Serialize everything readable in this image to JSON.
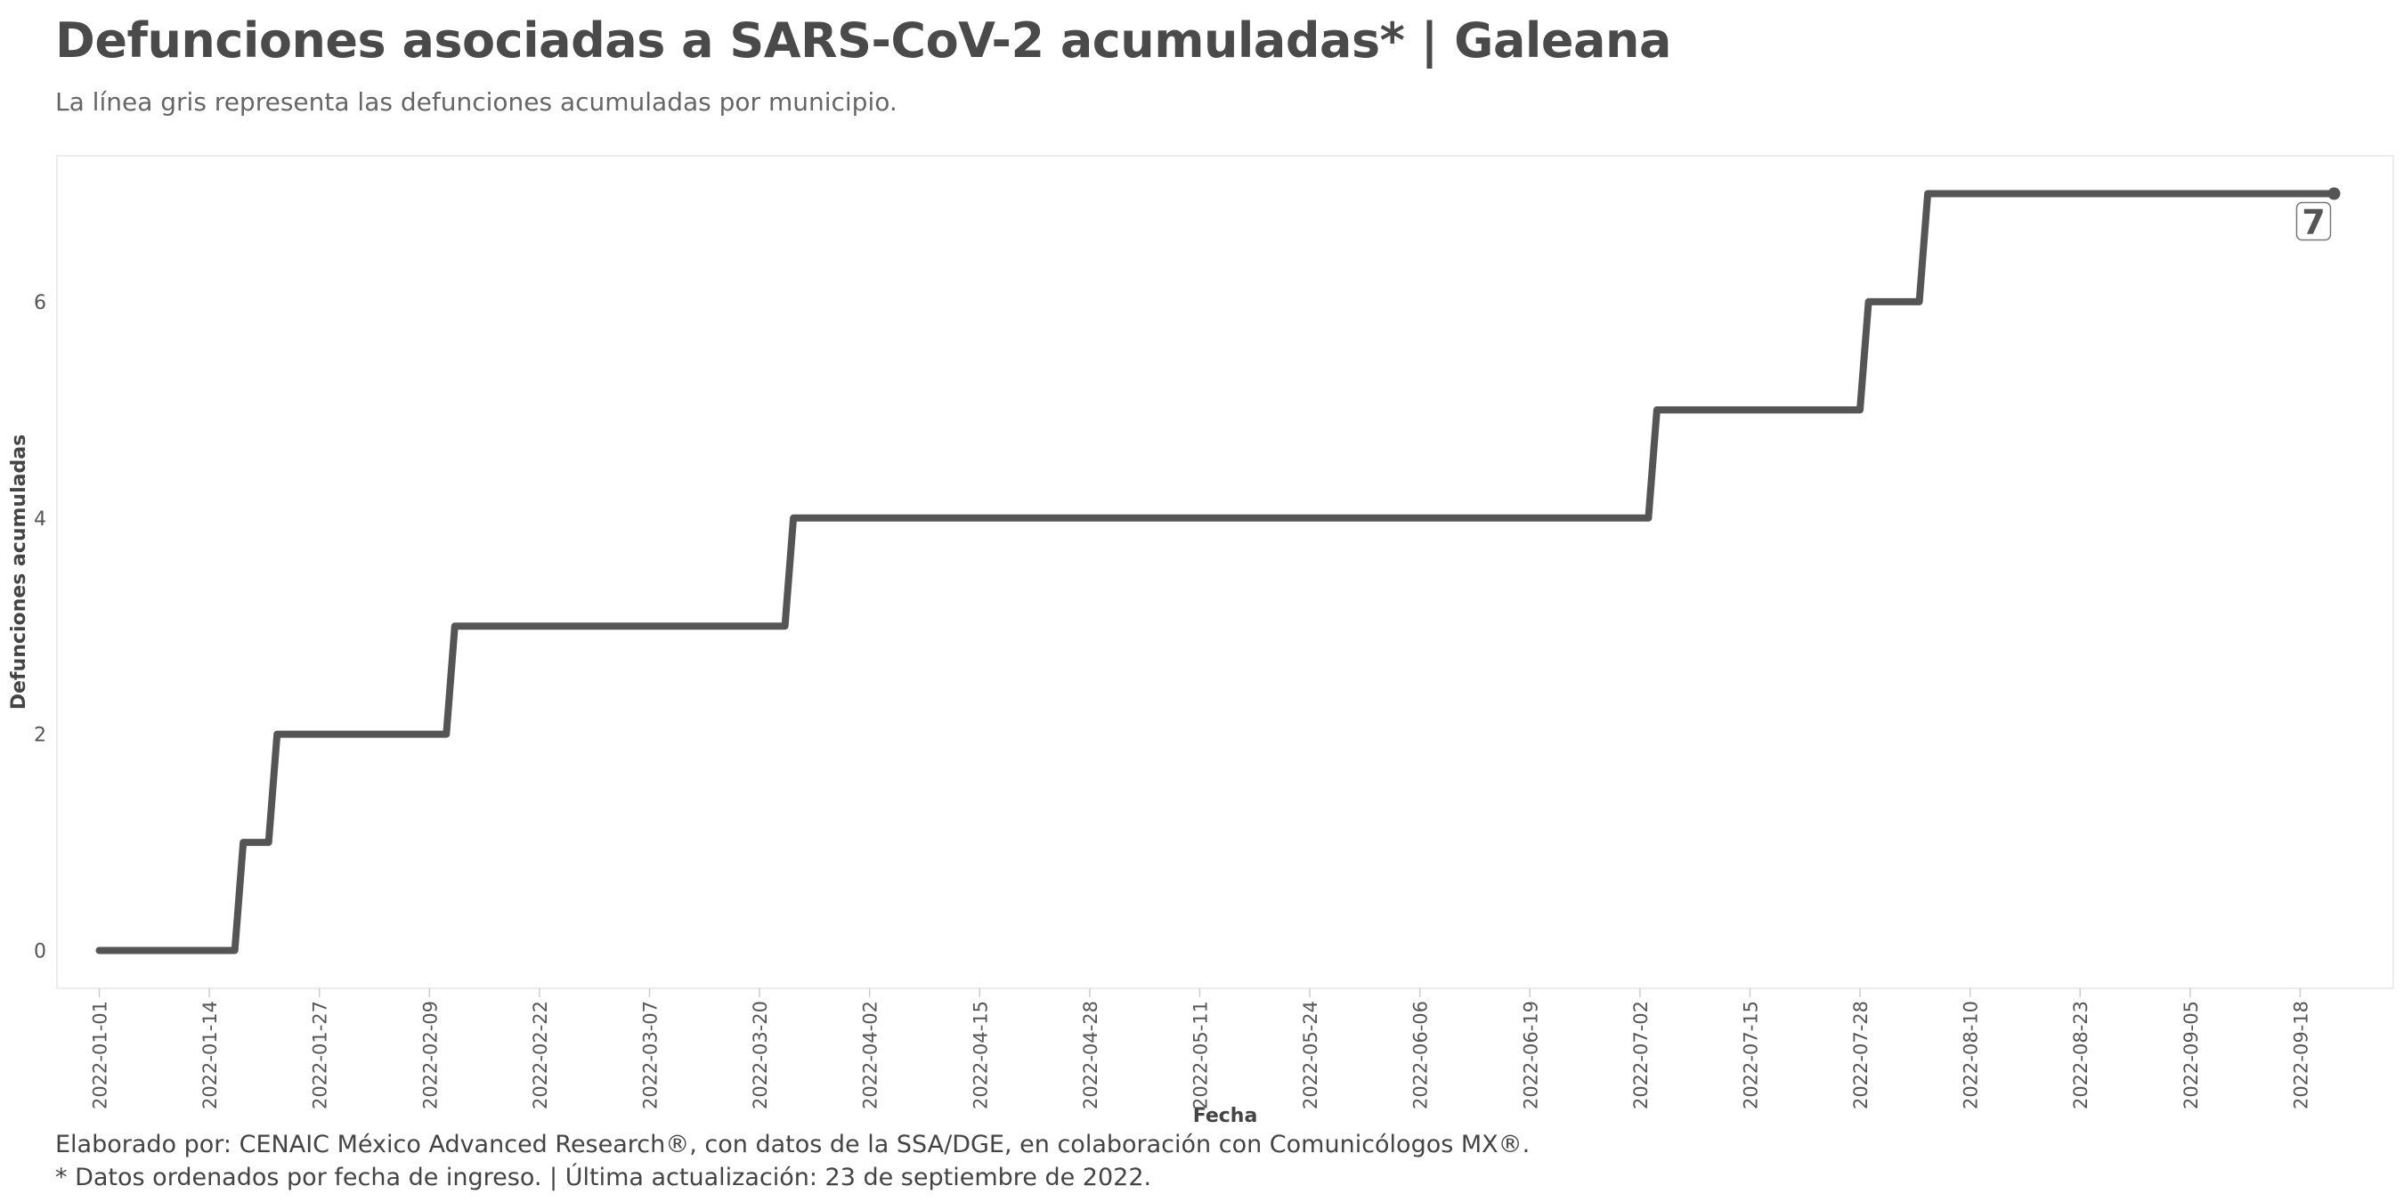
{
  "chart_data": {
    "type": "line",
    "title": "Defunciones asociadas a SARS-CoV-2 acumuladas* | Galeana",
    "subtitle": "La línea gris representa las defunciones acumuladas por municipio.",
    "xlabel": "Fecha",
    "ylabel": "Defunciones acumuladas",
    "ylim": [
      -0.35,
      7.35
    ],
    "xlim": [
      "2021-12-27",
      "2022-09-29"
    ],
    "y_ticks": [
      0,
      2,
      4,
      6
    ],
    "x_ticks": [
      "2022-01-01",
      "2022-01-14",
      "2022-01-27",
      "2022-02-09",
      "2022-02-22",
      "2022-03-07",
      "2022-03-20",
      "2022-04-02",
      "2022-04-15",
      "2022-04-28",
      "2022-05-11",
      "2022-05-24",
      "2022-06-06",
      "2022-06-19",
      "2022-07-02",
      "2022-07-15",
      "2022-07-28",
      "2022-08-10",
      "2022-08-23",
      "2022-09-05",
      "2022-09-18"
    ],
    "grid": false,
    "series": [
      {
        "color": "#555555",
        "points": [
          [
            "2022-01-01",
            0
          ],
          [
            "2022-01-17",
            0
          ],
          [
            "2022-01-18",
            1
          ],
          [
            "2022-01-21",
            1
          ],
          [
            "2022-01-22",
            2
          ],
          [
            "2022-02-11",
            2
          ],
          [
            "2022-02-12",
            3
          ],
          [
            "2022-03-23",
            3
          ],
          [
            "2022-03-24",
            4
          ],
          [
            "2022-07-03",
            4
          ],
          [
            "2022-07-04",
            5
          ],
          [
            "2022-07-28",
            5
          ],
          [
            "2022-07-29",
            6
          ],
          [
            "2022-08-04",
            6
          ],
          [
            "2022-08-05",
            7
          ],
          [
            "2022-09-22",
            7
          ]
        ]
      }
    ],
    "end_label": "7"
  },
  "caption": {
    "line1": "Elaborado por: CENAIC México Advanced Research®, con datos de la SSA/DGE, en colaboración con Comunicólogos MX®.",
    "line2": "* Datos ordenados por fecha de ingreso. | Última actualización: 23 de septiembre de 2022."
  }
}
